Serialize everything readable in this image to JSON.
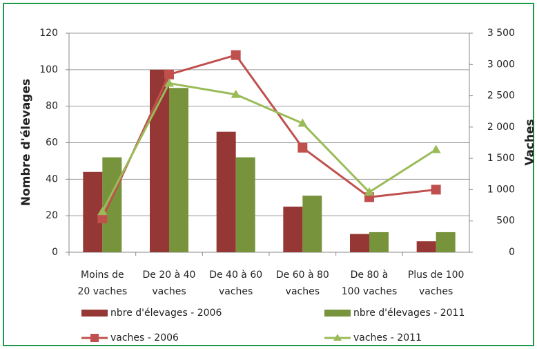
{
  "chart_data": {
    "type": "bar-line",
    "ylabel": "Nombre d'élevages",
    "y2label": "Vaches",
    "categories": [
      "Moins de\n20 vaches",
      "De 20 à 40\nvaches",
      "De 40 à 60\nvaches",
      "De 60 à 80\nvaches",
      "De 80 à\n100 vaches",
      "Plus de 100\nvaches"
    ],
    "ylim": [
      0,
      120
    ],
    "yticks": [
      0,
      20,
      40,
      60,
      80,
      100,
      120
    ],
    "y2lim": [
      0,
      3500
    ],
    "y2ticks": [
      0,
      500,
      {
        "value": 1000,
        "label": "1 000"
      },
      {
        "value": 1500,
        "label": "1 500"
      },
      {
        "value": 2000,
        "label": "2 000"
      },
      {
        "value": 2500,
        "label": "2 500"
      },
      {
        "value": 3000,
        "label": "3 000"
      },
      {
        "value": 3500,
        "label": "3 500"
      }
    ],
    "grid": true,
    "legend": "bottom",
    "series": [
      {
        "name": "nbre d'élevages - 2006",
        "type": "bar",
        "color": "#953735",
        "values": [
          44,
          100,
          66,
          25,
          10,
          6
        ]
      },
      {
        "name": "nbre d'élevages - 2011",
        "type": "bar",
        "color": "#77933c",
        "values": [
          52,
          90,
          52,
          31,
          11,
          11
        ]
      },
      {
        "name": "vaches - 2006",
        "type": "line",
        "axis": "y2",
        "marker": "square",
        "color": "#c0504d",
        "values": [
          540,
          2840,
          3150,
          1670,
          880,
          1000
        ]
      },
      {
        "name": "vaches - 2011",
        "type": "line",
        "axis": "y2",
        "marker": "triangle",
        "color": "#9bbb59",
        "values": [
          650,
          2700,
          2520,
          2060,
          960,
          1640
        ]
      }
    ]
  }
}
